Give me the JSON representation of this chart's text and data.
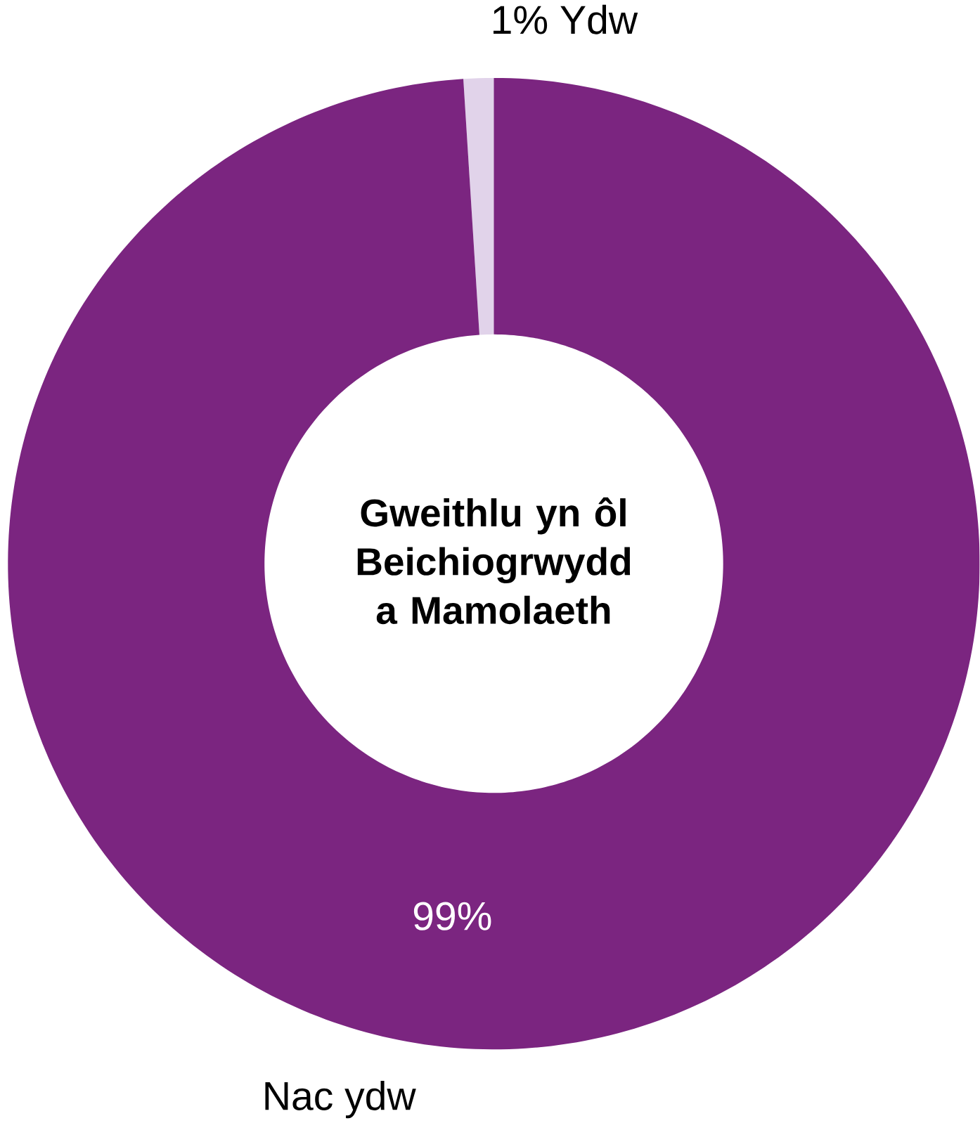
{
  "chart_data": {
    "type": "donut",
    "title": "Gweithlu yn ôl Beichiogrwydd a Mamolaeth",
    "categories": [
      "Ydw",
      "Nac ydw"
    ],
    "values": [
      1,
      99
    ],
    "colors": [
      "#e1d3ea",
      "#7b2580"
    ],
    "value_labels": [
      "1%",
      "99%"
    ]
  }
}
